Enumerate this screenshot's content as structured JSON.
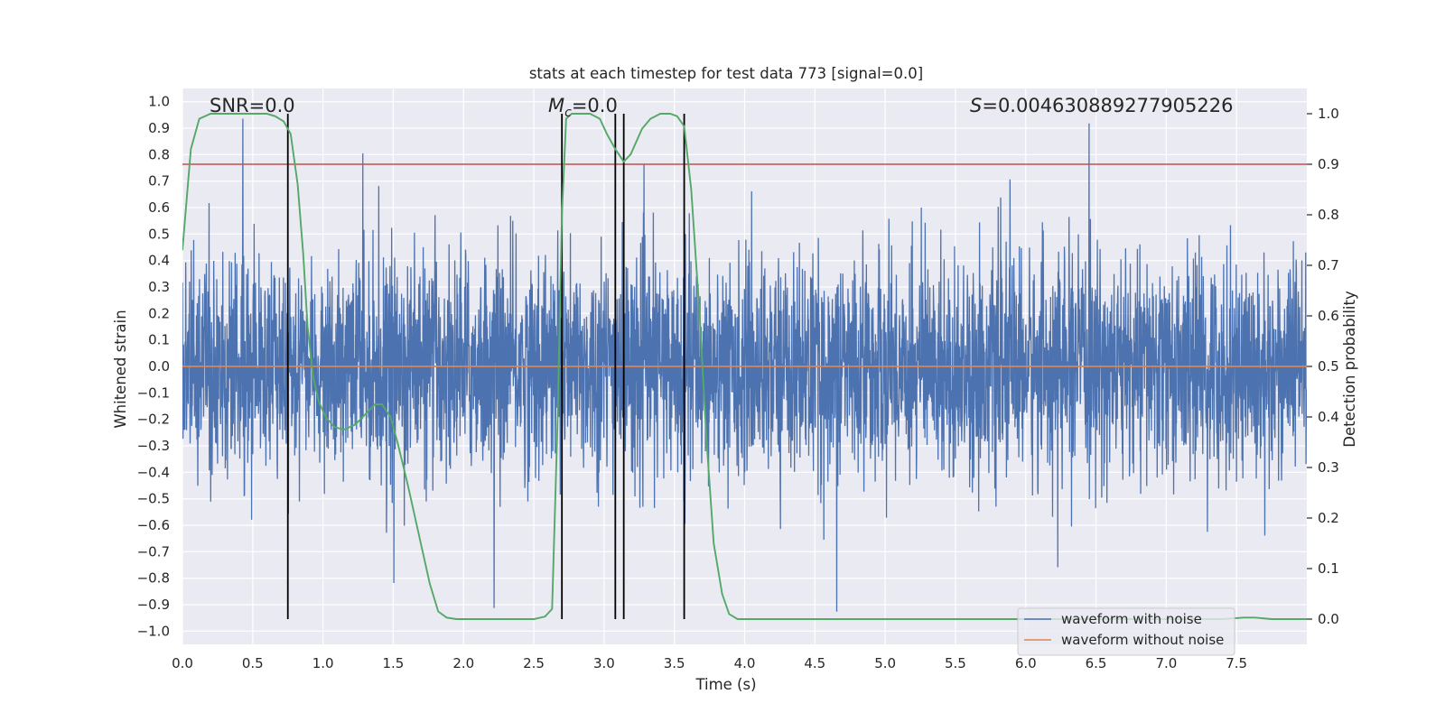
{
  "chart_data": {
    "type": "line",
    "title": "stats at each timestep for test data 773 [signal=0.0]",
    "xlabel": "Time (s)",
    "ylabel": "Whitened strain",
    "y2label": "Detection probability",
    "xlim": [
      0.0,
      8.0
    ],
    "ylim": [
      -1.05,
      1.05
    ],
    "y2lim": [
      -0.05,
      1.05
    ],
    "x_ticks": [
      0.0,
      0.5,
      1.0,
      1.5,
      2.0,
      2.5,
      3.0,
      3.5,
      4.0,
      4.5,
      5.0,
      5.5,
      6.0,
      6.5,
      7.0,
      7.5
    ],
    "x_tick_labels": [
      "0.0",
      "0.5",
      "1.0",
      "1.5",
      "2.0",
      "2.5",
      "3.0",
      "3.5",
      "4.0",
      "4.5",
      "5.0",
      "5.5",
      "6.0",
      "6.5",
      "7.0",
      "7.5"
    ],
    "y_ticks": [
      1.0,
      0.9,
      0.8,
      0.7,
      0.6,
      0.5,
      0.4,
      0.3,
      0.2,
      0.1,
      0.0,
      -0.1,
      -0.2,
      -0.3,
      -0.4,
      -0.5,
      -0.6,
      -0.7,
      -0.8,
      -0.9,
      -1.0
    ],
    "y_tick_labels": [
      "1.0",
      "0.9",
      "0.8",
      "0.7",
      "0.6",
      "0.5",
      "0.4",
      "0.3",
      "0.2",
      "0.1",
      "0.0",
      "−0.1",
      "−0.2",
      "−0.3",
      "−0.4",
      "−0.5",
      "−0.6",
      "−0.7",
      "−0.8",
      "−0.9",
      "−1.0"
    ],
    "y2_ticks": [
      1.0,
      0.9,
      0.8,
      0.7,
      0.6,
      0.5,
      0.4,
      0.3,
      0.2,
      0.1,
      0.0
    ],
    "y2_tick_labels": [
      "1.0",
      "0.9",
      "0.8",
      "0.7",
      "0.6",
      "0.5",
      "0.4",
      "0.3",
      "0.2",
      "0.1",
      "0.0"
    ],
    "annotations": {
      "snr": "SNR=0.0",
      "mc_symbol": "M",
      "mc_sub": "c",
      "mc_value": "=0.0",
      "s_symbol": "S",
      "s_value": "=0.004630889277905226"
    },
    "threshold": {
      "value": 0.9,
      "axis": "y2",
      "color": "#c44e52"
    },
    "vertical_lines_x": [
      0.75,
      2.7,
      3.08,
      3.14,
      3.57
    ],
    "series": [
      {
        "name": "waveform with noise",
        "color": "#4c72b0",
        "axis": "y",
        "description": "dense noise samples, roughly symmetric around 0 with amplitude ~0.4, spikes up to ~1.0"
      },
      {
        "name": "waveform without noise",
        "color": "#dd8452",
        "axis": "y",
        "values_constant": 0.0
      },
      {
        "name": "detection probability",
        "color": "#55a868",
        "axis": "y2",
        "x": [
          0.0,
          0.06,
          0.12,
          0.2,
          0.3,
          0.4,
          0.5,
          0.6,
          0.66,
          0.72,
          0.77,
          0.82,
          0.86,
          0.89,
          0.93,
          0.97,
          1.02,
          1.08,
          1.15,
          1.23,
          1.3,
          1.37,
          1.42,
          1.48,
          1.53,
          1.6,
          1.68,
          1.76,
          1.82,
          1.88,
          1.95,
          2.1,
          2.3,
          2.5,
          2.58,
          2.63,
          2.67,
          2.7,
          2.73,
          2.77,
          2.83,
          2.9,
          2.97,
          3.02,
          3.08,
          3.14,
          3.19,
          3.27,
          3.33,
          3.4,
          3.47,
          3.52,
          3.57,
          3.62,
          3.68,
          3.73,
          3.78,
          3.84,
          3.89,
          3.95,
          4.2,
          5.0,
          6.0,
          7.0,
          7.4,
          7.55,
          7.63,
          7.75,
          8.0
        ],
        "values": [
          0.73,
          0.93,
          0.99,
          1.0,
          1.0,
          1.0,
          1.0,
          1.0,
          0.995,
          0.985,
          0.96,
          0.86,
          0.72,
          0.58,
          0.48,
          0.43,
          0.4,
          0.38,
          0.375,
          0.385,
          0.405,
          0.425,
          0.425,
          0.4,
          0.35,
          0.27,
          0.17,
          0.07,
          0.015,
          0.003,
          0.0,
          0.0,
          0.0,
          0.0,
          0.005,
          0.02,
          0.4,
          0.8,
          0.99,
          1.0,
          1.0,
          1.0,
          0.99,
          0.96,
          0.93,
          0.905,
          0.92,
          0.97,
          0.99,
          1.0,
          1.0,
          0.995,
          0.975,
          0.85,
          0.6,
          0.35,
          0.15,
          0.05,
          0.01,
          0.0,
          0.0,
          0.0,
          0.0,
          0.0,
          0.0,
          0.003,
          0.003,
          0.0,
          0.0
        ]
      }
    ],
    "legend": {
      "position": "lower-right",
      "entries": [
        {
          "label": "waveform with noise",
          "color": "#4c72b0"
        },
        {
          "label": "waveform without noise",
          "color": "#dd8452"
        }
      ]
    },
    "grid": true
  }
}
